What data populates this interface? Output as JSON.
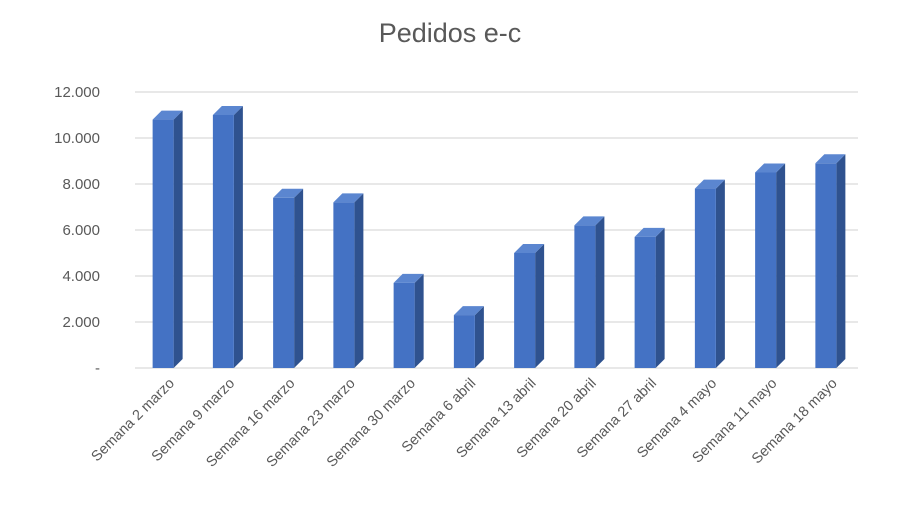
{
  "chart_data": {
    "type": "bar",
    "title": "Pedidos e-c",
    "categories": [
      "Semana 2 marzo",
      "Semana 9 marzo",
      "Semana 16 marzo",
      "Semana 23 marzo",
      "Semana 30 marzo",
      "Semana 6 abril",
      "Semana 13 abril",
      "Semana 20 abril",
      "Semana 27 abril",
      "Semana 4 mayo",
      "Semana 11 mayo",
      "Semana 18 mayo"
    ],
    "values": [
      10800,
      11000,
      7400,
      7200,
      3700,
      2300,
      5000,
      6200,
      5700,
      7800,
      8500,
      8900
    ],
    "y_ticks": [
      "-",
      "2.000",
      "4.000",
      "6.000",
      "8.000",
      "10.000",
      "12.000"
    ],
    "ylim": [
      0,
      12000
    ],
    "xlabel": "",
    "ylabel": "",
    "grid": true,
    "legend": "none",
    "bar_color": "#4472C4",
    "bar_side_color": "#2F528F",
    "bar_top_color": "#5B86D0",
    "text_color": "#595959",
    "grid_color": "#D9D9D9"
  }
}
